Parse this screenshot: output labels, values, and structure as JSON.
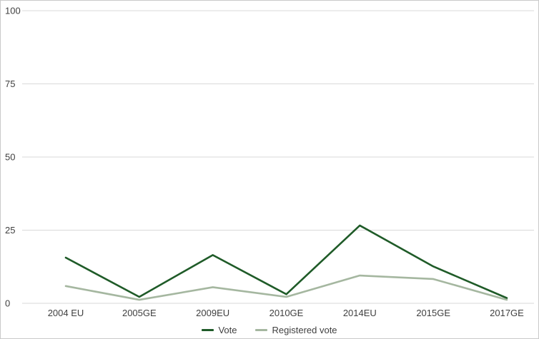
{
  "chart_data": {
    "type": "line",
    "title": "",
    "xlabel": "",
    "ylabel": "",
    "categories": [
      "2004 EU",
      "2005GE",
      "2009EU",
      "2010GE",
      "2014EU",
      "2015GE",
      "2017GE"
    ],
    "series": [
      {
        "name": "Vote",
        "color": "#1f5b28",
        "values": [
          15.6,
          2.2,
          16.5,
          3.1,
          26.6,
          12.6,
          1.8
        ]
      },
      {
        "name": "Registered vote",
        "color": "#a5b7a0",
        "values": [
          5.9,
          1.2,
          5.5,
          2.2,
          9.5,
          8.3,
          1.2
        ]
      }
    ],
    "ylim": [
      0,
      100
    ],
    "yticks": [
      0,
      25,
      50,
      75,
      100
    ],
    "grid": true,
    "legend_position": "bottom"
  },
  "colors": {
    "background": "#ffffff",
    "frame_border": "#c9c9c9",
    "gridline": "#d9d9d9",
    "tick_label": "#3f3f3f"
  }
}
